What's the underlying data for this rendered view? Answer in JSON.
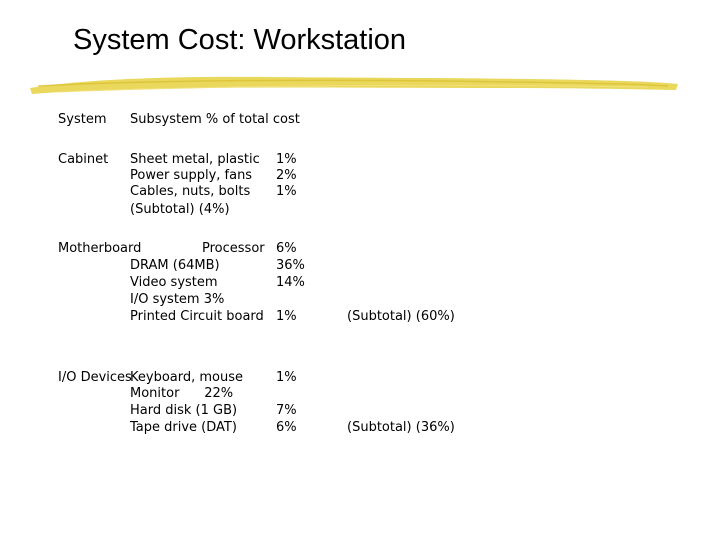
{
  "slide": {
    "title": "System Cost: Workstation",
    "accent_color": "#e8d44a"
  },
  "table": {
    "headers": {
      "system": "System",
      "subsystem_pct": "Subsystem  % of total cost"
    },
    "cabinet": {
      "system": "Cabinet",
      "rows": [
        {
          "item": "Sheet metal, plastic",
          "pct": "1%"
        },
        {
          "item": "Power supply, fans",
          "pct": "2%"
        },
        {
          "item": "Cables, nuts, bolts",
          "pct": "1%"
        }
      ],
      "subtotal": "(Subtotal)   (4%)"
    },
    "motherboard": {
      "system": "Motherboard",
      "rows": [
        {
          "item": "Processor",
          "pct": "6%"
        },
        {
          "item": "DRAM (64MB)",
          "pct": "36%"
        },
        {
          "item": "Video system",
          "pct": "14%"
        },
        {
          "item": "I/O system 3%",
          "pct": ""
        },
        {
          "item": "Printed Circuit board",
          "pct": "1%"
        }
      ],
      "subtotal": "(Subtotal)   (60%)"
    },
    "io_devices": {
      "system": "I/O Devices",
      "rows": [
        {
          "item": "Keyboard, mouse",
          "pct": "1%"
        },
        {
          "item": "Monitor      22%",
          "pct": ""
        },
        {
          "item": "Hard disk (1 GB)",
          "pct": "7%"
        },
        {
          "item": "Tape drive (DAT)",
          "pct": "6%"
        }
      ],
      "subtotal": "(Subtotal)   (36%)"
    }
  }
}
